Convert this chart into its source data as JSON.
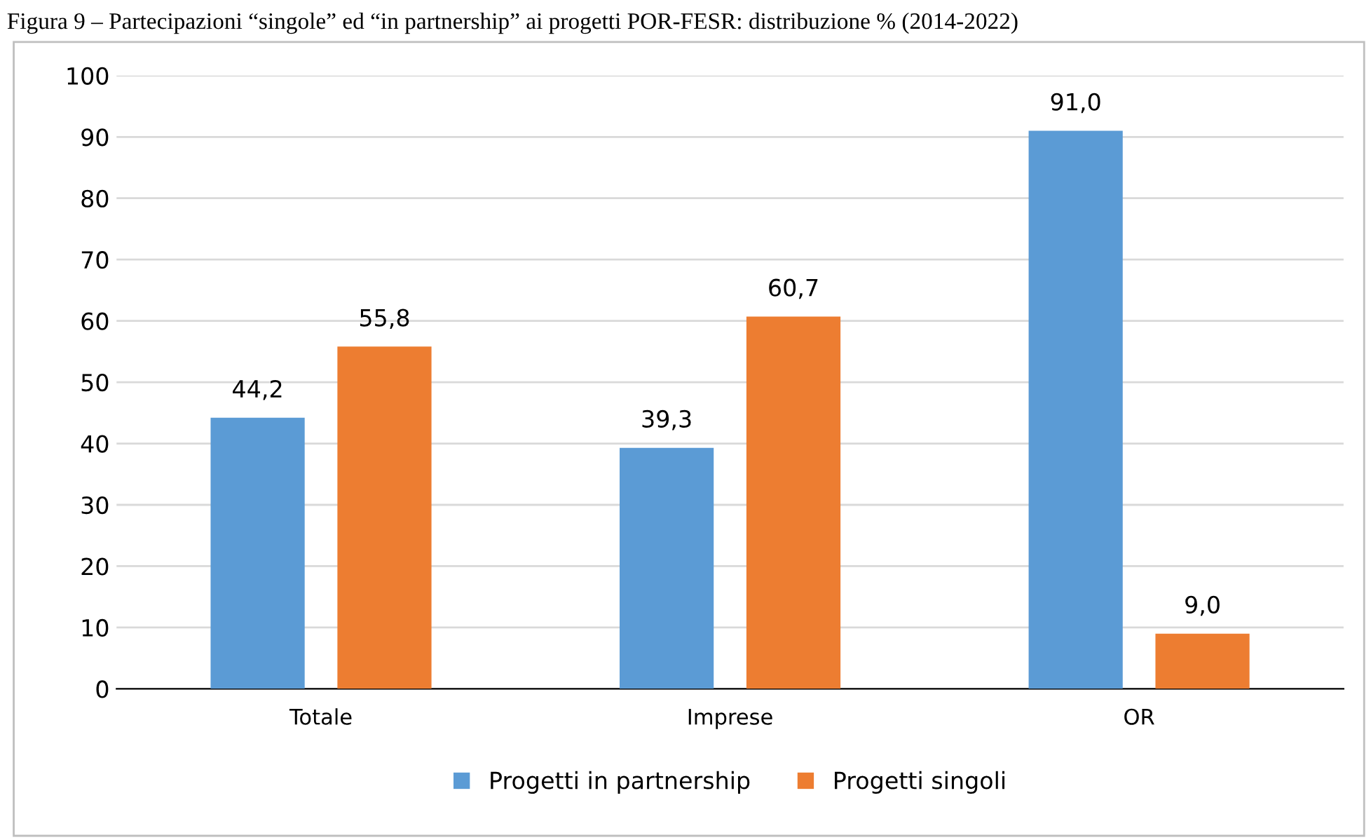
{
  "chart_data": {
    "type": "bar",
    "title": "Figura 9 – Partecipazioni “singole” ed “in partnership” ai progetti POR-FESR: distribuzione % (2014-2022)",
    "categories": [
      "Totale",
      "Imprese",
      "OR"
    ],
    "series": [
      {
        "name": "Progetti in partnership",
        "color": "#5b9bd5",
        "values": [
          44.2,
          39.3,
          91.0
        ],
        "value_labels": [
          "44,2",
          "39,3",
          "91,0"
        ]
      },
      {
        "name": "Progetti singoli",
        "color": "#ed7d31",
        "values": [
          55.8,
          60.7,
          9.0
        ],
        "value_labels": [
          "55,8",
          "60,7",
          "9,0"
        ]
      }
    ],
    "ylim": [
      0,
      100
    ],
    "yticks": [
      0,
      10,
      20,
      30,
      40,
      50,
      60,
      70,
      80,
      90,
      100
    ],
    "grid": "y",
    "legend": "bottom"
  }
}
